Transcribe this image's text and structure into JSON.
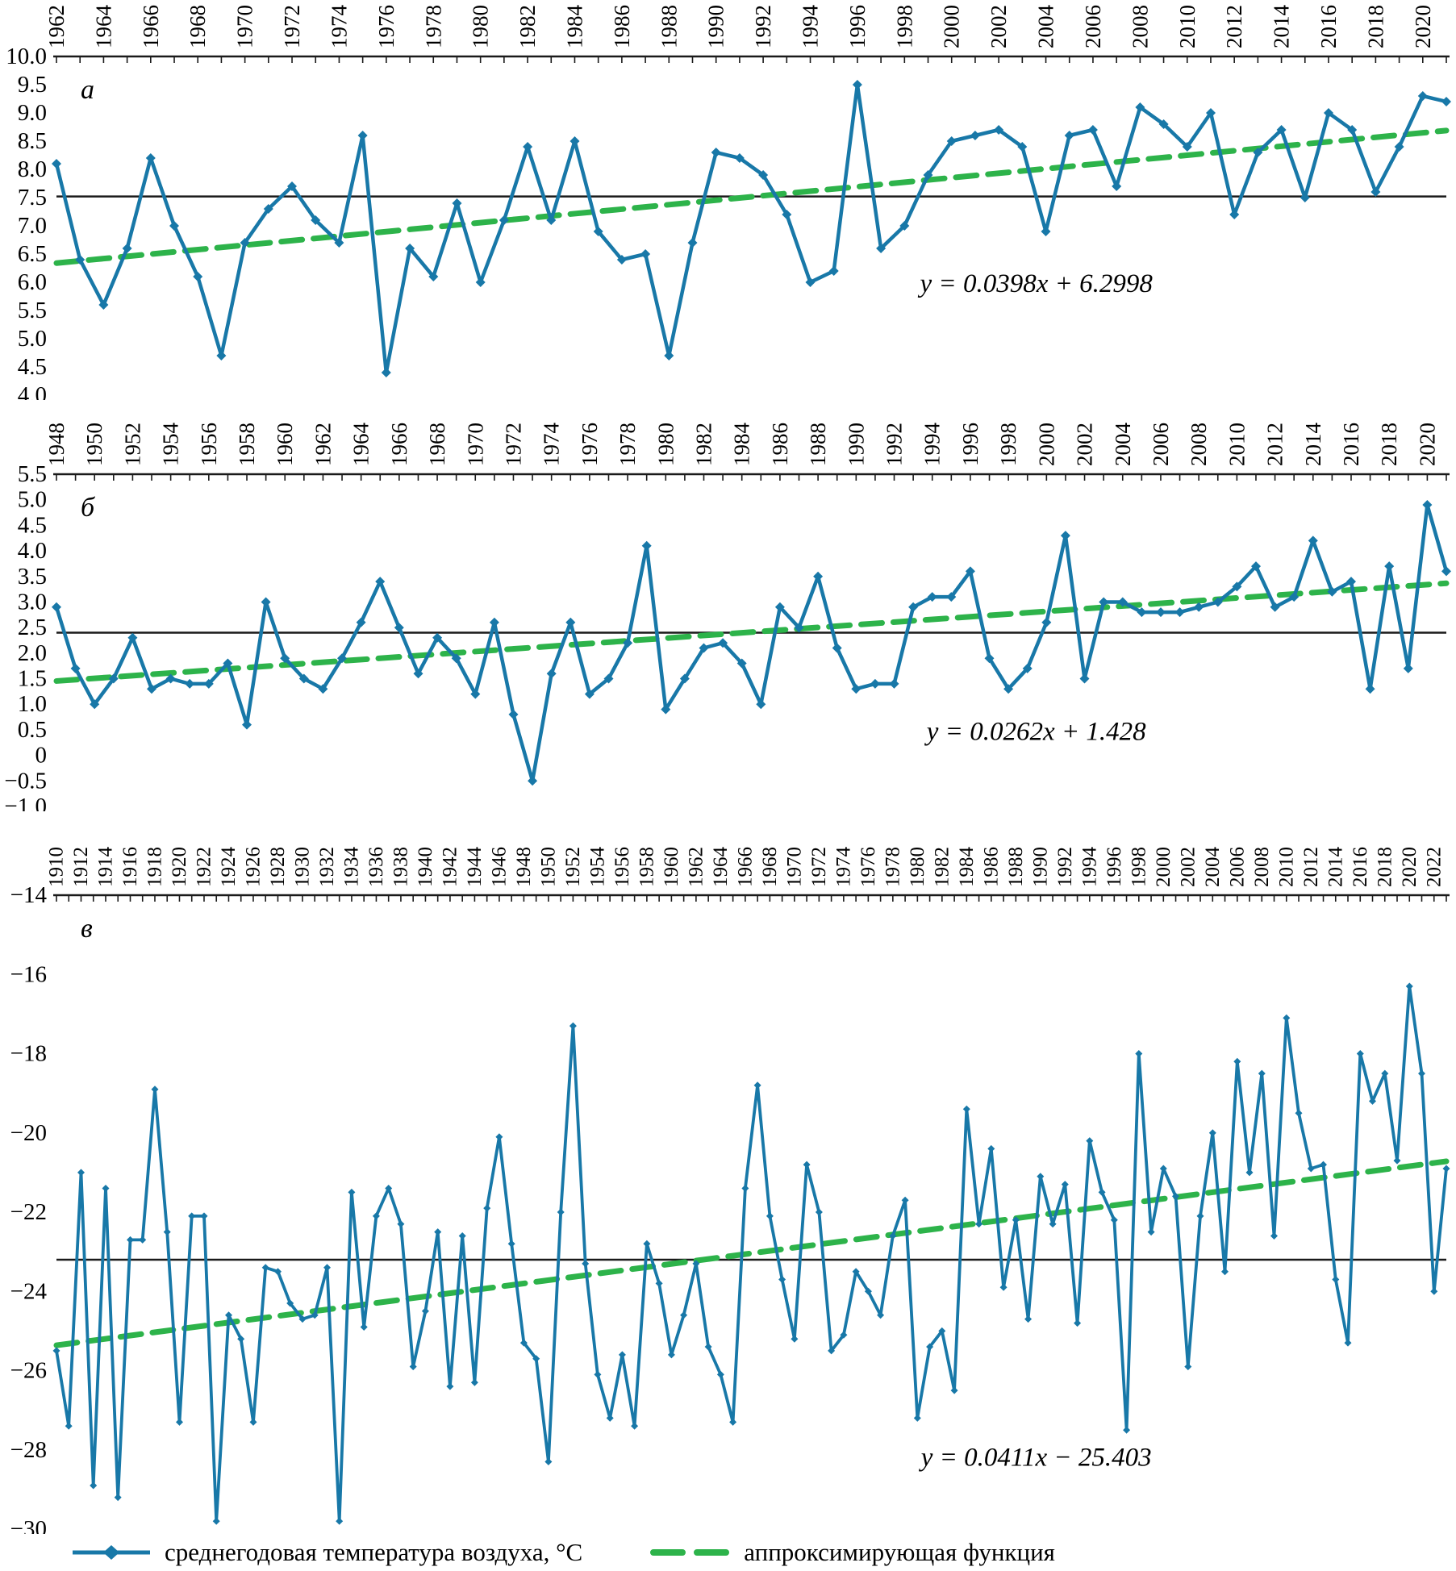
{
  "colors": {
    "series": "#1878a8",
    "trend": "#2db34a",
    "mean_line": "#1a1a1a",
    "axis": "#1a1a1a"
  },
  "legend": {
    "series_label": "среднегодовая температура воздуха, °C",
    "trend_label": "аппроксимирующая функция"
  },
  "chart_data": [
    {
      "type": "line",
      "panel_label": "а",
      "x_start": 1962,
      "x_end": 2021,
      "x_label_step": 2,
      "x_label_max": 2020,
      "ylim": [
        4.0,
        10.0
      ],
      "y_tick_step": 0.5,
      "y_tick_labels": [
        "10.0",
        "9.5",
        "9.0",
        "8.5",
        "8.0",
        "7.5",
        "7.0",
        "6.5",
        "6.0",
        "5.5",
        "5.0",
        "4.5",
        "4.0"
      ],
      "mean": 7.52,
      "trend": {
        "slope": 0.0398,
        "intercept": 6.2998,
        "equation": "y = 0.0398x + 6.2998"
      },
      "values": [
        8.1,
        6.4,
        5.6,
        6.6,
        8.2,
        7.0,
        6.1,
        4.7,
        6.7,
        7.3,
        7.7,
        7.1,
        6.7,
        8.6,
        4.4,
        6.6,
        6.1,
        7.4,
        6.0,
        7.1,
        8.4,
        7.1,
        8.5,
        6.9,
        6.4,
        6.5,
        4.7,
        6.7,
        8.3,
        8.2,
        7.9,
        7.2,
        6.0,
        6.2,
        9.5,
        6.6,
        7.0,
        7.9,
        8.5,
        8.6,
        8.7,
        8.4,
        6.9,
        8.6,
        8.7,
        7.7,
        9.1,
        8.8,
        8.4,
        9.0,
        7.2,
        8.3,
        8.7,
        7.5,
        9.0,
        8.7,
        7.6,
        8.4,
        9.3,
        9.2
      ]
    },
    {
      "type": "line",
      "panel_label": "б",
      "x_start": 1948,
      "x_end": 2021,
      "x_label_step": 2,
      "x_label_max": 2020,
      "ylim": [
        -1.0,
        5.5
      ],
      "y_tick_step": 0.5,
      "y_tick_labels": [
        "5.5",
        "5.0",
        "4.5",
        "4.0",
        "3.5",
        "3.0",
        "2.5",
        "2.0",
        "1.5",
        "1.0",
        "0.5",
        "0",
        "−0.5",
        "−1.0"
      ],
      "mean": 2.4,
      "trend": {
        "slope": 0.0262,
        "intercept": 1.428,
        "equation": "y = 0.0262x + 1.428"
      },
      "values": [
        2.9,
        1.7,
        1.0,
        1.5,
        2.3,
        1.3,
        1.5,
        1.4,
        1.4,
        1.8,
        0.6,
        3.0,
        1.9,
        1.5,
        1.3,
        1.9,
        2.6,
        3.4,
        2.5,
        1.6,
        2.3,
        1.9,
        1.2,
        2.6,
        0.8,
        -0.5,
        1.6,
        2.6,
        1.2,
        1.5,
        2.2,
        4.1,
        0.9,
        1.5,
        2.1,
        2.2,
        1.8,
        1.0,
        2.9,
        2.5,
        3.5,
        2.1,
        1.3,
        1.4,
        1.4,
        2.9,
        3.1,
        3.1,
        3.6,
        1.9,
        1.3,
        1.7,
        2.6,
        4.3,
        1.5,
        3.0,
        3.0,
        2.8,
        2.8,
        2.8,
        2.9,
        3.0,
        3.3,
        3.7,
        2.9,
        3.1,
        4.2,
        3.2,
        3.4,
        1.3,
        3.7,
        1.7,
        4.9,
        3.6
      ]
    },
    {
      "type": "line",
      "panel_label": "в",
      "x_start": 1910,
      "x_end": 2023,
      "x_label_step": 2,
      "x_label_max": 2022,
      "ylim": [
        -30,
        -14
      ],
      "y_tick_step": 2,
      "y_tick_labels": [
        "−14",
        "−16",
        "−18",
        "−20",
        "−22",
        "−24",
        "−26",
        "−28",
        "−30"
      ],
      "mean": -23.2,
      "trend": {
        "slope": 0.0411,
        "intercept": -25.403,
        "equation": "y = 0.0411x − 25.403"
      },
      "values": [
        -25.5,
        -27.4,
        -21.0,
        -28.9,
        -21.4,
        -29.2,
        -22.7,
        -22.7,
        -18.9,
        -22.5,
        -27.3,
        -22.1,
        -22.1,
        -29.8,
        -24.6,
        -25.2,
        -27.3,
        -23.4,
        -23.5,
        -24.3,
        -24.7,
        -24.6,
        -23.4,
        -29.8,
        -21.5,
        -24.9,
        -22.1,
        -21.4,
        -22.3,
        -25.9,
        -24.5,
        -22.5,
        -26.4,
        -22.6,
        -26.3,
        -21.9,
        -20.1,
        -22.8,
        -25.3,
        -25.7,
        -28.3,
        -22.0,
        -17.3,
        -23.3,
        -26.1,
        -27.2,
        -25.6,
        -27.4,
        -22.8,
        -23.8,
        -25.6,
        -24.6,
        -23.3,
        -25.4,
        -26.1,
        -27.3,
        -21.4,
        -18.8,
        -22.1,
        -23.7,
        -25.2,
        -20.8,
        -22.0,
        -25.5,
        -25.1,
        -23.5,
        -24.0,
        -24.6,
        -22.6,
        -21.7,
        -27.2,
        -25.4,
        -25.0,
        -26.5,
        -19.4,
        -22.3,
        -20.4,
        -23.9,
        -22.2,
        -24.7,
        -21.1,
        -22.3,
        -21.3,
        -24.8,
        -20.2,
        -21.5,
        -22.2,
        -27.5,
        -18.0,
        -22.5,
        -20.9,
        -21.6,
        -25.9,
        -22.1,
        -20.0,
        -23.5,
        -18.2,
        -21.0,
        -18.5,
        -22.6,
        -17.1,
        -19.5,
        -20.9,
        -20.8,
        -23.7,
        -25.3,
        -18.0,
        -19.2,
        -18.5,
        -20.7,
        -16.3,
        -18.5,
        -24.0,
        -20.9
      ]
    }
  ]
}
